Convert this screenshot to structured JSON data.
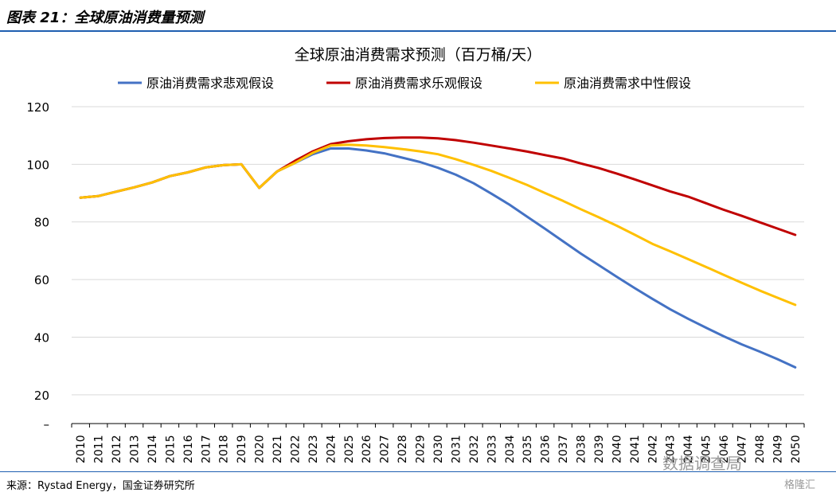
{
  "header": {
    "title": "图表 21：全球原油消费量预测"
  },
  "footer": {
    "source": "来源：Rystad Energy，国金证券研究所"
  },
  "watermark": {
    "text": "数据调查局",
    "brand": "格隆汇"
  },
  "chart_data": {
    "type": "line",
    "title": "全球原油消费需求预测（百万桶/天）",
    "xlabel": "",
    "ylabel": "",
    "ylim": [
      10,
      120
    ],
    "yticks": [
      "120",
      "100",
      "80",
      "60",
      "40",
      "20",
      "–"
    ],
    "grid": true,
    "legend_position": "top",
    "x": [
      "2010",
      "2011",
      "2012",
      "2013",
      "2014",
      "2015",
      "2016",
      "2017",
      "2018",
      "2019",
      "2020",
      "2021",
      "2022",
      "2023",
      "2024",
      "2025",
      "2026",
      "2027",
      "2028",
      "2029",
      "2030",
      "2031",
      "2032",
      "2033",
      "2034",
      "2035",
      "2036",
      "2037",
      "2038",
      "2039",
      "2040",
      "2041",
      "2042",
      "2043",
      "2044",
      "2045",
      "2046",
      "2047",
      "2048",
      "2049",
      "2050"
    ],
    "series": [
      {
        "name": "原油消费需求悲观假设",
        "color": "#4472c4",
        "values": [
          88.4,
          89.0,
          90.5,
          92.0,
          93.7,
          95.9,
          97.2,
          98.9,
          99.7,
          100.0,
          91.8,
          97.5,
          100.5,
          103.5,
          105.5,
          105.5,
          104.8,
          103.8,
          102.3,
          100.8,
          98.8,
          96.4,
          93.4,
          89.8,
          86.0,
          81.8,
          77.6,
          73.3,
          69.0,
          65.0,
          61.0,
          57.1,
          53.3,
          49.7,
          46.4,
          43.3,
          40.3,
          37.5,
          35.0,
          32.4,
          29.5
        ]
      },
      {
        "name": "原油消费需求乐观假设",
        "color": "#c00000",
        "values": [
          88.4,
          89.0,
          90.5,
          92.0,
          93.7,
          95.9,
          97.2,
          98.9,
          99.7,
          100.0,
          91.8,
          97.5,
          101.2,
          104.5,
          107.0,
          108.0,
          108.7,
          109.1,
          109.3,
          109.3,
          109.0,
          108.4,
          107.5,
          106.5,
          105.5,
          104.4,
          103.2,
          102.0,
          100.3,
          98.7,
          96.8,
          94.8,
          92.7,
          90.6,
          88.8,
          86.5,
          84.2,
          82.1,
          79.9,
          77.7,
          75.5
        ]
      },
      {
        "name": "原油消费需求中性假设",
        "color": "#ffc000",
        "values": [
          88.4,
          89.0,
          90.5,
          92.0,
          93.7,
          95.9,
          97.2,
          98.9,
          99.7,
          100.0,
          91.8,
          97.5,
          100.5,
          104.0,
          106.5,
          106.8,
          106.5,
          106.0,
          105.3,
          104.5,
          103.5,
          101.8,
          99.8,
          97.7,
          95.3,
          92.8,
          90.0,
          87.3,
          84.4,
          81.6,
          78.7,
          75.6,
          72.4,
          69.8,
          67.1,
          64.4,
          61.6,
          58.9,
          56.2,
          53.7,
          51.2
        ]
      }
    ]
  }
}
